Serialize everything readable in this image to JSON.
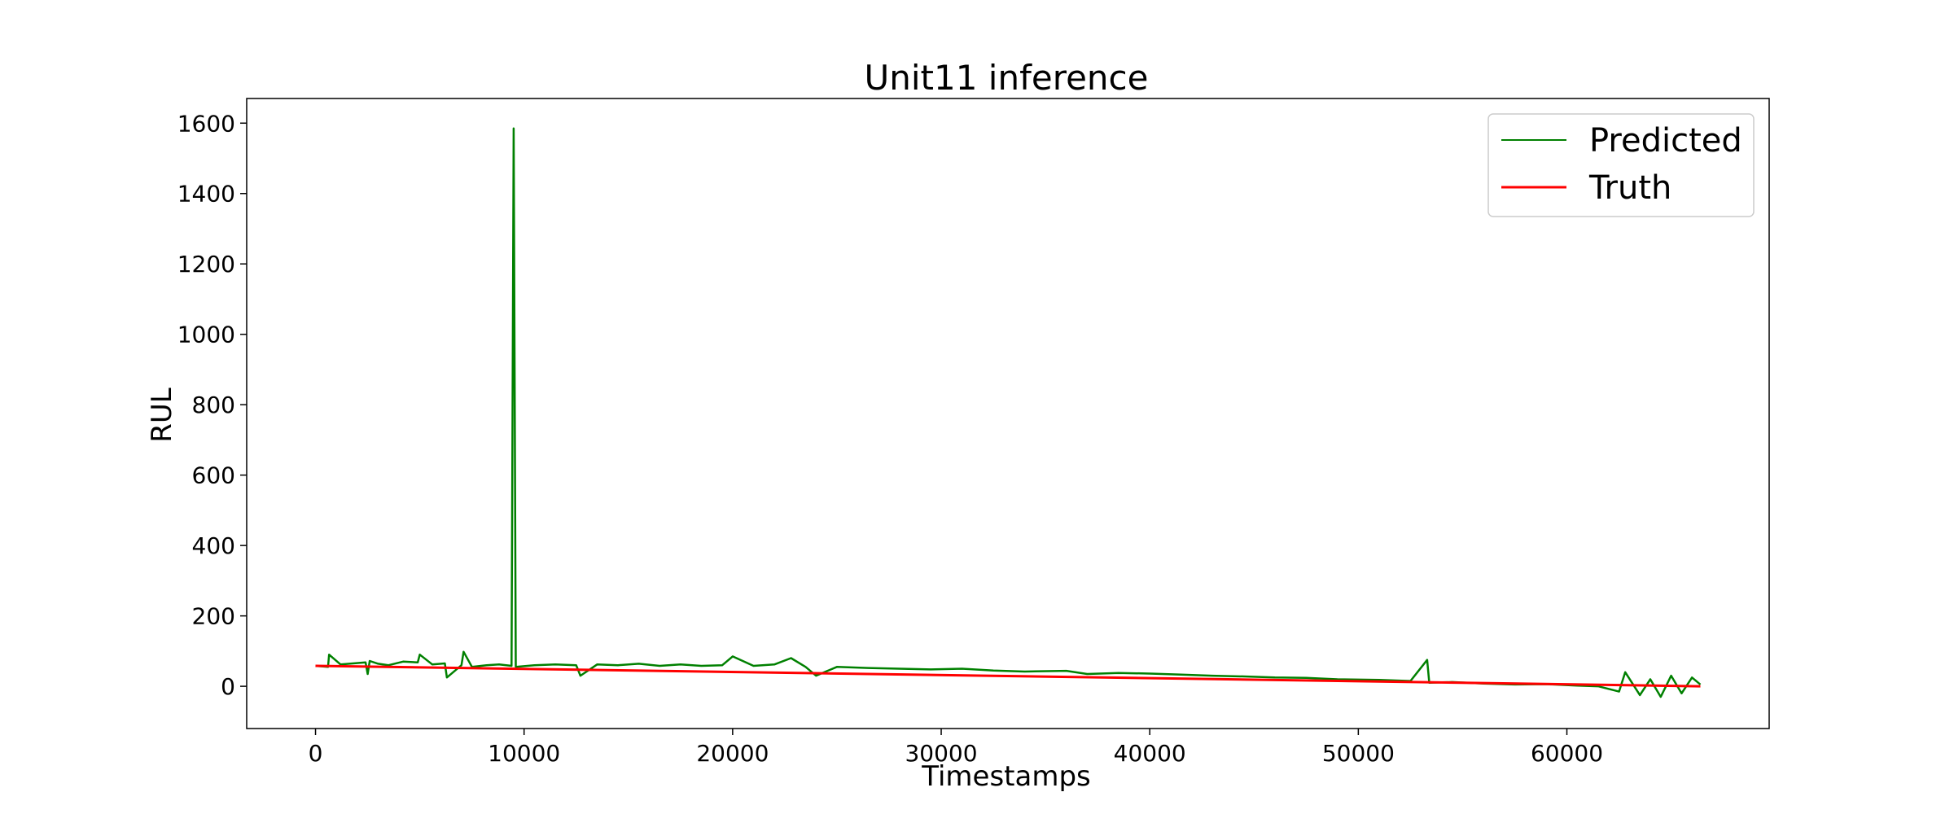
{
  "chart_data": {
    "type": "line",
    "title": "Unit11 inference",
    "xlabel": "Timestamps",
    "ylabel": "RUL",
    "xlim": [
      -3300,
      69700
    ],
    "ylim": [
      -120,
      1670
    ],
    "xticks": [
      0,
      10000,
      20000,
      30000,
      40000,
      50000,
      60000
    ],
    "yticks": [
      0,
      200,
      400,
      600,
      800,
      1000,
      1200,
      1400,
      1600
    ],
    "grid": false,
    "legend_position": "top-right",
    "colors": {
      "predicted": "#008000",
      "truth": "#ff0000"
    },
    "series": [
      {
        "name": "Predicted",
        "color": "#008000",
        "x": [
          0,
          600,
          650,
          1200,
          1800,
          2400,
          2500,
          2600,
          3000,
          3500,
          4200,
          4900,
          5000,
          5600,
          6200,
          6300,
          7000,
          7100,
          7500,
          8200,
          8800,
          9400,
          9500,
          9600,
          10500,
          11500,
          12500,
          12700,
          13500,
          14500,
          15500,
          16500,
          17500,
          18500,
          19500,
          20000,
          21000,
          22000,
          22800,
          23500,
          24000,
          25000,
          26500,
          28000,
          29500,
          31000,
          32500,
          34000,
          36000,
          37000,
          38500,
          40000,
          41500,
          43000,
          44500,
          46000,
          47500,
          49000,
          51000,
          52500,
          53300,
          53400,
          54500,
          56000,
          57500,
          59000,
          60500,
          61500,
          62500,
          62800,
          63500,
          64000,
          64500,
          65000,
          65500,
          66000,
          66400
        ],
        "y": [
          58,
          55,
          90,
          62,
          65,
          68,
          35,
          72,
          64,
          60,
          70,
          68,
          90,
          62,
          65,
          25,
          60,
          98,
          55,
          60,
          62,
          58,
          1585,
          55,
          60,
          62,
          60,
          30,
          62,
          60,
          64,
          58,
          62,
          58,
          60,
          85,
          58,
          62,
          80,
          55,
          30,
          55,
          52,
          50,
          48,
          50,
          45,
          42,
          44,
          35,
          38,
          36,
          33,
          30,
          28,
          25,
          24,
          20,
          18,
          15,
          75,
          10,
          12,
          8,
          5,
          6,
          2,
          0,
          -15,
          40,
          -25,
          20,
          -30,
          30,
          -20,
          25,
          5
        ]
      },
      {
        "name": "Truth",
        "color": "#ff0000",
        "x": [
          0,
          66400
        ],
        "y": [
          58,
          0
        ]
      }
    ]
  }
}
